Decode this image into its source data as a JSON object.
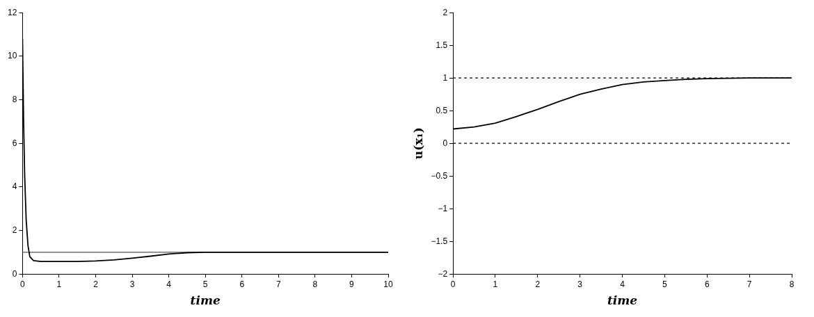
{
  "chart_data": [
    {
      "type": "line",
      "xlabel": "time",
      "xlim": [
        0,
        10
      ],
      "xticks": [
        0,
        1,
        2,
        3,
        4,
        5,
        6,
        7,
        8,
        9,
        10
      ],
      "ylim": [
        0,
        12
      ],
      "yticks": [
        0,
        2,
        4,
        6,
        8,
        10,
        12
      ],
      "grid": false,
      "legend": false,
      "marker": "none",
      "line_style": "solid",
      "series": [
        {
          "color": "#000000",
          "x": [
            0,
            0.03,
            0.06,
            0.1,
            0.15,
            0.2,
            0.3,
            0.5,
            1,
            1.5,
            2,
            2.5,
            3,
            3.5,
            4,
            4.5,
            5,
            6,
            7,
            8,
            9,
            10
          ],
          "values": [
            10.8,
            7,
            4.5,
            2.5,
            1.3,
            0.8,
            0.62,
            0.58,
            0.58,
            0.58,
            0.6,
            0.65,
            0.73,
            0.82,
            0.92,
            0.98,
            1.0,
            1.0,
            1.0,
            1.0,
            1.0,
            1.0
          ]
        }
      ],
      "ref_lines": [
        {
          "axis": "y",
          "value": 1,
          "color": "#555555",
          "line_style": "solid"
        }
      ]
    },
    {
      "type": "line",
      "xlabel": "time",
      "ylabel": "u(x₁)",
      "xlim": [
        0,
        8
      ],
      "xticks": [
        0,
        1,
        2,
        3,
        4,
        5,
        6,
        7,
        8
      ],
      "ylim": [
        -2,
        2
      ],
      "yticks": [
        -2,
        -1.5,
        -1,
        -0.5,
        0,
        0.5,
        1,
        1.5,
        2
      ],
      "grid": false,
      "legend": false,
      "marker": "none",
      "line_style": "solid",
      "series": [
        {
          "color": "#000000",
          "x": [
            0,
            0.5,
            1,
            1.5,
            2,
            2.5,
            3,
            3.5,
            4,
            4.5,
            5,
            5.5,
            6,
            7,
            8
          ],
          "values": [
            0.22,
            0.25,
            0.31,
            0.41,
            0.52,
            0.64,
            0.75,
            0.83,
            0.9,
            0.94,
            0.96,
            0.98,
            0.99,
            1.0,
            1.0
          ]
        }
      ],
      "ref_lines": [
        {
          "axis": "y",
          "value": 0,
          "color": "#000000",
          "line_style": "dashed"
        },
        {
          "axis": "y",
          "value": 1,
          "color": "#000000",
          "line_style": "dashed"
        }
      ]
    }
  ]
}
